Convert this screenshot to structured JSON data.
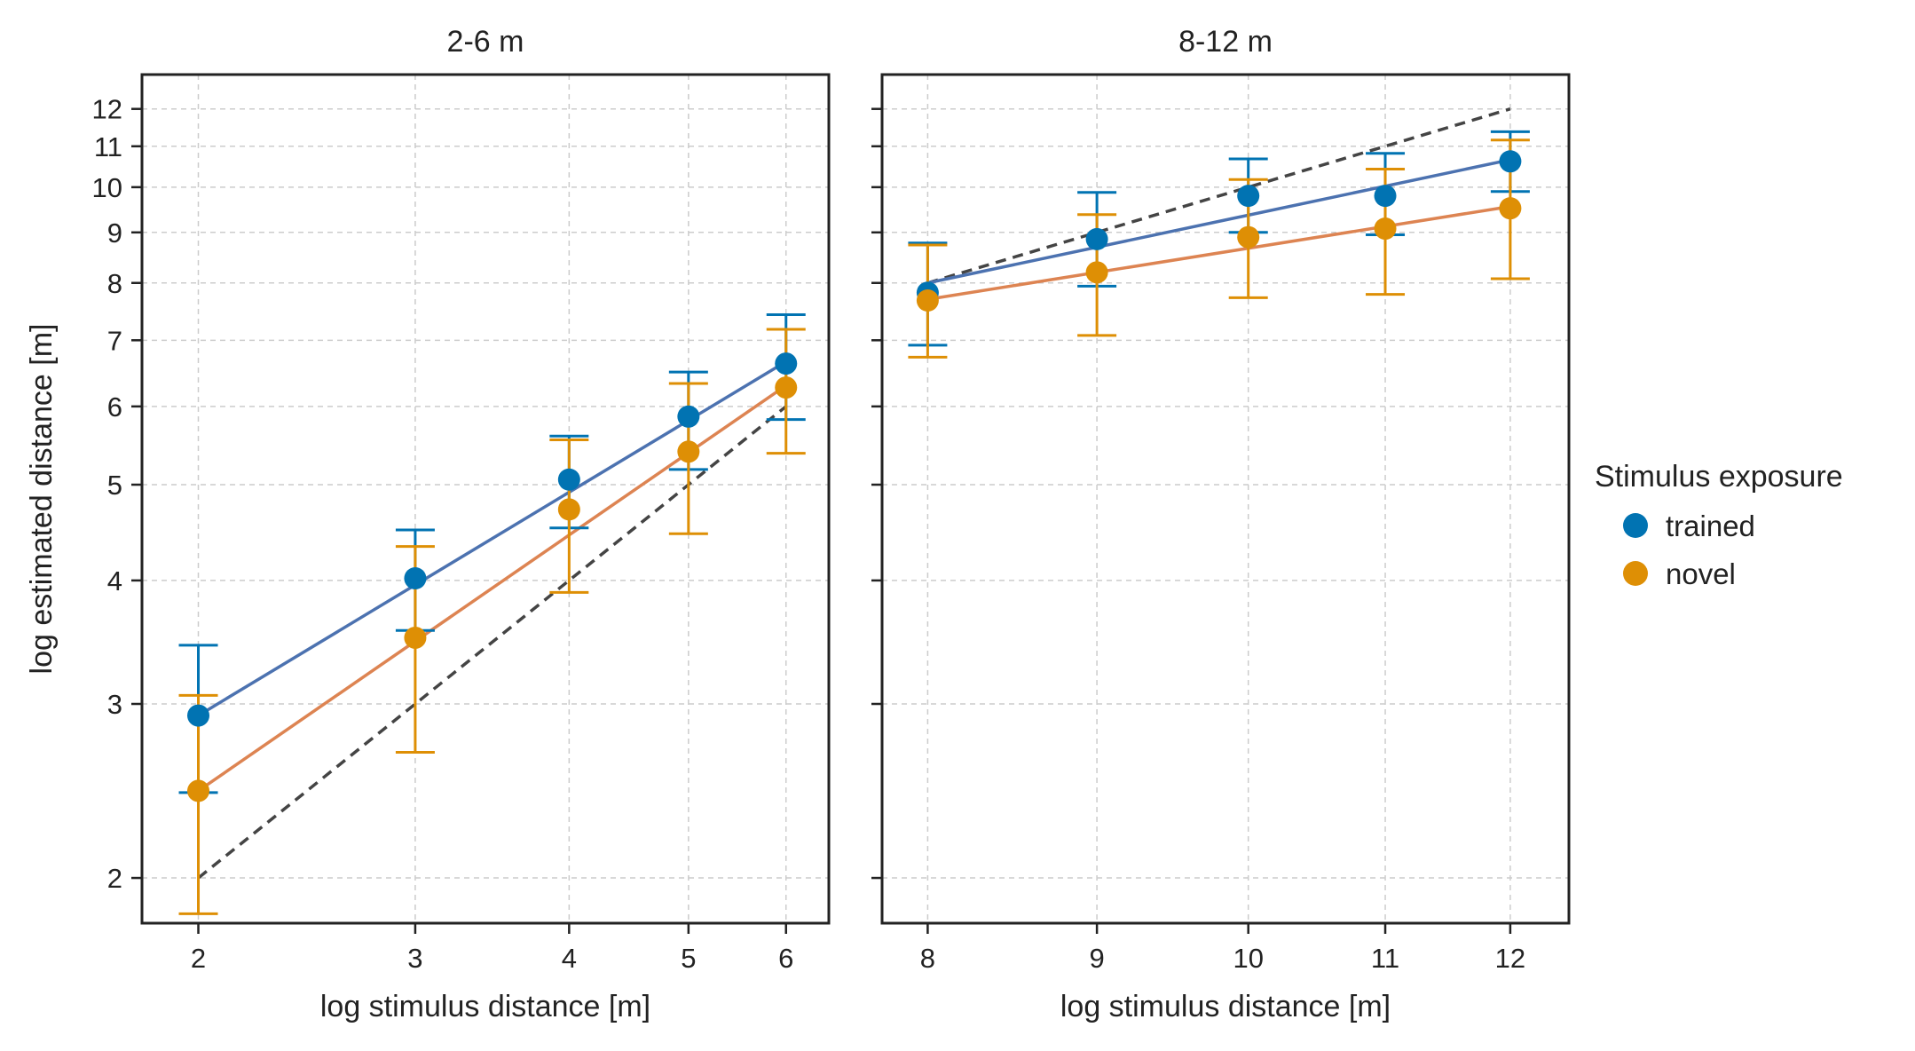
{
  "chart_data": [
    {
      "type": "scatter",
      "title": "2-6 m",
      "xlabel": "log stimulus distance [m]",
      "ylabel": "log estimated distance [m]",
      "xscale": "log",
      "yscale": "log",
      "xlim": [
        1.8,
        6.5
      ],
      "ylim": [
        1.8,
        13.0
      ],
      "xticks": [
        2,
        3,
        4,
        5,
        6
      ],
      "yticks": [
        2,
        3,
        4,
        5,
        6,
        7,
        8,
        9,
        10,
        11,
        12
      ],
      "grid": true,
      "identity_line": {
        "x": [
          2,
          6
        ],
        "y": [
          2,
          6
        ],
        "style": "dashed"
      },
      "series": [
        {
          "name": "trained",
          "color": "#0173b2",
          "line_color": "#4c72b0",
          "x": [
            2,
            3,
            4,
            5,
            6
          ],
          "y": [
            2.92,
            4.02,
            5.06,
            5.86,
            6.63
          ],
          "err_low": [
            2.44,
            3.56,
            4.52,
            5.18,
            5.82
          ],
          "err_high": [
            3.44,
            4.5,
            5.6,
            6.5,
            7.43
          ],
          "fit_y": [
            2.92,
            6.66
          ]
        },
        {
          "name": "novel",
          "color": "#de8f05",
          "line_color": "#dd8452",
          "x": [
            2,
            3,
            4,
            5,
            6
          ],
          "y": [
            2.45,
            3.5,
            4.72,
            5.4,
            6.27
          ],
          "err_low": [
            1.84,
            2.68,
            3.89,
            4.46,
            5.38
          ],
          "err_high": [
            3.06,
            4.33,
            5.55,
            6.33,
            7.18
          ],
          "fit_y": [
            2.45,
            6.3
          ]
        }
      ]
    },
    {
      "type": "scatter",
      "title": "8-12 m",
      "xlabel": "log stimulus distance [m]",
      "ylabel": "",
      "xscale": "log",
      "yscale": "log",
      "xlim": [
        7.75,
        12.5
      ],
      "ylim": [
        1.8,
        13.0
      ],
      "xticks": [
        8,
        9,
        10,
        11,
        12
      ],
      "yticks": [
        2,
        3,
        4,
        5,
        6,
        7,
        8,
        9,
        10,
        11,
        12
      ],
      "grid": true,
      "identity_line": {
        "x": [
          8,
          12
        ],
        "y": [
          8,
          12
        ],
        "style": "dashed"
      },
      "series": [
        {
          "name": "trained",
          "color": "#0173b2",
          "line_color": "#4c72b0",
          "x": [
            8,
            9,
            10,
            11,
            12
          ],
          "y": [
            7.82,
            8.86,
            9.8,
            9.8,
            10.62
          ],
          "err_low": [
            6.92,
            7.94,
            9.0,
            8.95,
            9.9
          ],
          "err_high": [
            8.78,
            9.88,
            10.68,
            10.82,
            11.38
          ],
          "fit_y": [
            8.0,
            10.66
          ]
        },
        {
          "name": "novel",
          "color": "#de8f05",
          "line_color": "#dd8452",
          "x": [
            8,
            9,
            10,
            11,
            12
          ],
          "y": [
            7.68,
            8.2,
            8.9,
            9.08,
            9.52
          ],
          "err_low": [
            6.73,
            7.08,
            7.73,
            7.79,
            8.08
          ],
          "err_high": [
            8.74,
            9.38,
            10.18,
            10.43,
            11.16
          ],
          "fit_y": [
            7.7,
            9.56
          ]
        }
      ]
    }
  ],
  "legend": {
    "title": "Stimulus exposure",
    "placement": "right",
    "entries": [
      {
        "label": "trained",
        "color": "#0173b2"
      },
      {
        "label": "novel",
        "color": "#de8f05"
      }
    ]
  }
}
